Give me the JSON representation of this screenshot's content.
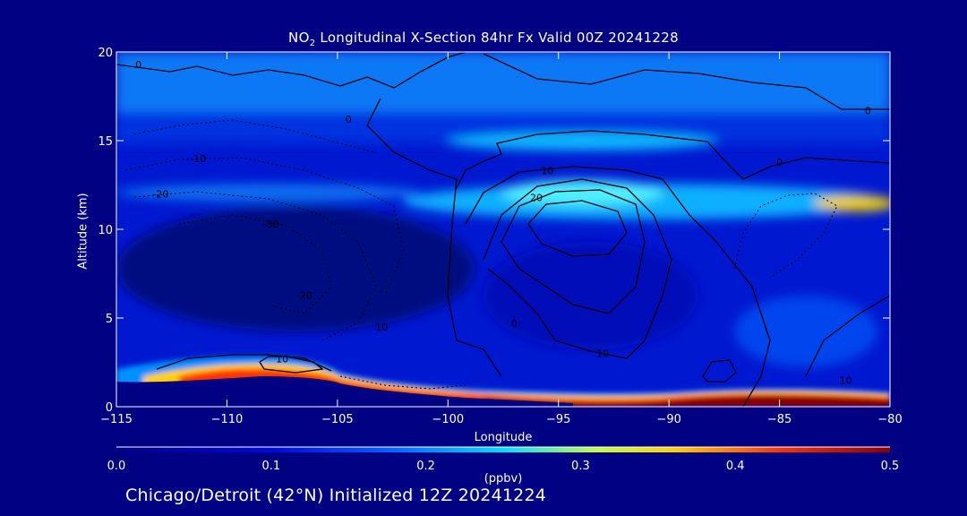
{
  "title": {
    "prefix": "NO",
    "sub": "2",
    "rest": " Longitudinal X-Section 84hr  Fx Valid 00Z 20241228"
  },
  "footer": "Chicago/Detroit (42°N) Initialized 12Z 20241224",
  "chart_data": {
    "type": "heatmap",
    "title": "NO2 Longitudinal X-Section 84hr  Fx Valid 00Z 20241228",
    "xlabel": "Longitude",
    "ylabel": "Altitude (km)",
    "xlim": [
      -115,
      -80
    ],
    "ylim": [
      0,
      20
    ],
    "x_ticks": [
      "-115",
      "-110",
      "-105",
      "-100",
      "-95",
      "-90",
      "-85",
      "-80"
    ],
    "y_ticks": [
      "0",
      "5",
      "10",
      "15",
      "20"
    ],
    "colorbar": {
      "label": "(ppbv)",
      "range": [
        0.0,
        0.5
      ],
      "ticks": [
        "0.0",
        "0.1",
        "0.2",
        "0.3",
        "0.4",
        "0.5"
      ]
    },
    "field_description_points": [
      {
        "lon": -110,
        "alt": 2.1,
        "no2": 0.38
      },
      {
        "lon": -95,
        "alt": 0.8,
        "no2": 0.5
      },
      {
        "lon": -85,
        "alt": 0.8,
        "no2": 0.5
      },
      {
        "lon": -94,
        "alt": 12.0,
        "no2": 0.22
      },
      {
        "lon": -81,
        "alt": 11.6,
        "no2": 0.33
      },
      {
        "lon": -97,
        "alt": 15.0,
        "no2": 0.18
      },
      {
        "lon": -110,
        "alt": 8.0,
        "no2": 0.03
      },
      {
        "lon": -95,
        "alt": 19.0,
        "no2": 0.12
      }
    ],
    "contour_labels": [
      {
        "text": "0",
        "lon": -114,
        "alt": 19.3
      },
      {
        "text": "0",
        "lon": -81,
        "alt": 16.7
      },
      {
        "text": "0",
        "lon": -104.5,
        "alt": 16.2
      },
      {
        "text": "0",
        "lon": -85,
        "alt": 13.8
      },
      {
        "text": "-10",
        "lon": -111.3,
        "alt": 14.0
      },
      {
        "text": "-20",
        "lon": -113,
        "alt": 12.0
      },
      {
        "text": "-30",
        "lon": -108,
        "alt": 10.3
      },
      {
        "text": "-20",
        "lon": -106.5,
        "alt": 6.3
      },
      {
        "text": "10",
        "lon": -95.5,
        "alt": 13.3
      },
      {
        "text": "20",
        "lon": -96,
        "alt": 11.8
      },
      {
        "text": "10",
        "lon": -107.5,
        "alt": 2.7
      },
      {
        "text": "10",
        "lon": -93,
        "alt": 3.0
      },
      {
        "text": "10",
        "lon": -103,
        "alt": 4.5
      },
      {
        "text": "0",
        "lon": -97,
        "alt": 4.7
      },
      {
        "text": "10",
        "lon": -82,
        "alt": 1.5
      }
    ]
  },
  "colors": {
    "background": "#010183",
    "scale": [
      "#02025e",
      "#0008d8",
      "#0060ff",
      "#00e0ff",
      "#c0ff40",
      "#ffd000",
      "#ff3000",
      "#900000"
    ]
  }
}
